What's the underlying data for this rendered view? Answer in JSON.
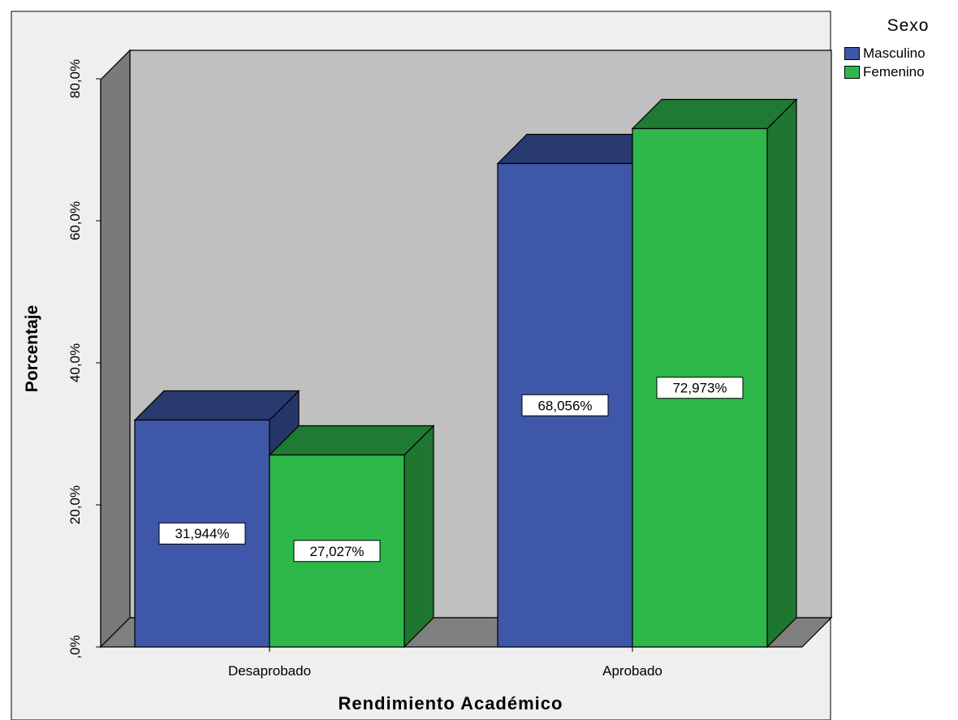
{
  "chart_data": {
    "type": "bar",
    "title": "",
    "xlabel": "Rendimiento Académico",
    "ylabel": "Porcentaje",
    "categories": [
      "Desaprobado",
      "Aprobado"
    ],
    "series": [
      {
        "name": "Masculino",
        "values": [
          31.944,
          68.056
        ],
        "labels": [
          "31,944%",
          "68,056%"
        ],
        "color": "#3e57a8"
      },
      {
        "name": "Femenino",
        "values": [
          27.027,
          72.973
        ],
        "labels": [
          "27,027%",
          "72,973%"
        ],
        "color": "#2eb84a"
      }
    ],
    "ylim": [
      0,
      80
    ],
    "ticks": [
      0,
      20,
      40,
      60,
      80
    ],
    "tick_labels": [
      ",0%",
      "20,0%",
      "40,0%",
      "60,0%",
      "80,0%"
    ],
    "legend_title": "Sexo",
    "legend_position": "top-right",
    "grid": false,
    "three_d": true
  },
  "colors": {
    "plot_back_wall": "#c0c0c0",
    "plot_side_wall": "#7a7a7a",
    "plot_floor": "#808080",
    "frame_background": "#efefef",
    "masculino_top": "#283a6e",
    "masculino_side": "#263668",
    "femenino_top": "#1f7a33",
    "femenino_side": "#1e7630"
  }
}
